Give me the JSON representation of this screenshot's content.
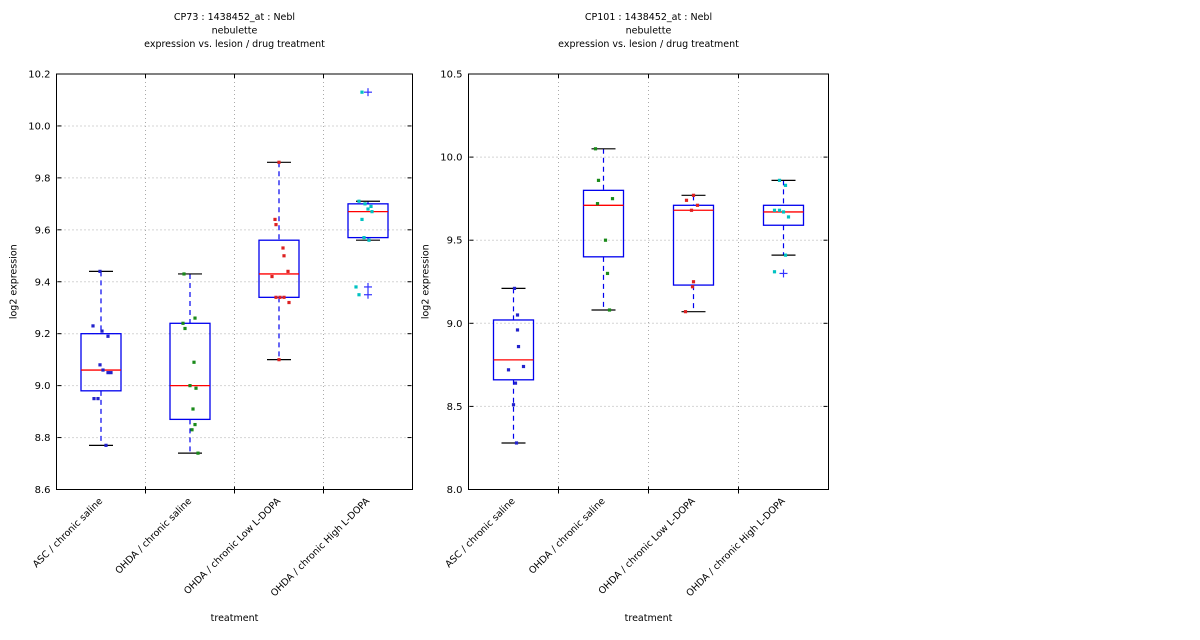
{
  "figure": {
    "background": "#ffffff"
  },
  "style": {
    "box_color": "#0000ee",
    "median_color": "#ff0000",
    "whisker_color": "#0000ee",
    "cap_color": "#000000",
    "outlier_color": "#3333ff",
    "grid_color": "#aaaaaa",
    "frame_color": "#000000",
    "text_color": "#000000"
  },
  "chart_data": [
    {
      "type": "boxplot",
      "title_lines": [
        "CP73 : 1438452_at : Nebl",
        "nebulette",
        "expression vs. lesion / drug treatment"
      ],
      "xlabel": "treatment",
      "ylabel": "log2 expression",
      "ylim": [
        8.6,
        10.2
      ],
      "yticks": [
        8.6,
        8.8,
        9.0,
        9.2,
        9.4,
        9.6,
        9.8,
        10.0,
        10.2
      ],
      "ytick_labels": [
        "8.6",
        "8.8",
        "9.0",
        "9.2",
        "9.4",
        "9.6",
        "9.8",
        "10.0",
        "10.2"
      ],
      "grid": true,
      "legend": "none",
      "categories": [
        "ASC / chronic saline",
        "OHDA / chronic saline",
        "OHDA / chronic Low L-DOPA",
        "OHDA / chronic High L-DOPA"
      ],
      "boxes": [
        {
          "category": "ASC / chronic saline",
          "whisker_low": 8.77,
          "q1": 8.98,
          "median": 9.06,
          "q3": 9.2,
          "whisker_high": 9.44,
          "outliers": [],
          "point_color": "#2222cc",
          "points": [
            [
              -1,
              9.44
            ],
            [
              -8,
              9.23
            ],
            [
              1,
              9.21
            ],
            [
              7,
              9.19
            ],
            [
              -1,
              9.08
            ],
            [
              2,
              9.06
            ],
            [
              7,
              9.05
            ],
            [
              10,
              9.05
            ],
            [
              -7,
              8.95
            ],
            [
              -3,
              8.95
            ],
            [
              5,
              8.77
            ]
          ]
        },
        {
          "category": "OHDA / chronic saline",
          "whisker_low": 8.74,
          "q1": 8.87,
          "median": 9.0,
          "q3": 9.24,
          "whisker_high": 9.43,
          "outliers": [],
          "point_color": "#1a8a1a",
          "points": [
            [
              -6,
              9.43
            ],
            [
              5,
              9.26
            ],
            [
              -7,
              9.24
            ],
            [
              -5,
              9.22
            ],
            [
              4,
              9.09
            ],
            [
              0,
              9.0
            ],
            [
              6,
              8.99
            ],
            [
              3,
              8.91
            ],
            [
              5,
              8.85
            ],
            [
              2,
              8.83
            ],
            [
              8,
              8.74
            ]
          ]
        },
        {
          "category": "OHDA / chronic Low L-DOPA",
          "whisker_low": 9.1,
          "q1": 9.34,
          "median": 9.43,
          "q3": 9.56,
          "whisker_high": 9.86,
          "outliers": [],
          "point_color": "#dd2222",
          "points": [
            [
              0,
              9.86
            ],
            [
              -4,
              9.64
            ],
            [
              -3,
              9.62
            ],
            [
              4,
              9.53
            ],
            [
              5,
              9.5
            ],
            [
              9,
              9.44
            ],
            [
              -7,
              9.42
            ],
            [
              -3,
              9.34
            ],
            [
              1,
              9.34
            ],
            [
              5,
              9.34
            ],
            [
              10,
              9.32
            ],
            [
              0,
              9.1
            ]
          ]
        },
        {
          "category": "OHDA / chronic High L-DOPA",
          "whisker_low": 9.56,
          "q1": 9.57,
          "median": 9.67,
          "q3": 9.7,
          "whisker_high": 9.71,
          "outliers": [
            10.13,
            9.38,
            9.35
          ],
          "point_color": "#00c2c2",
          "points": [
            [
              -6,
              10.13
            ],
            [
              -9,
              9.71
            ],
            [
              -3,
              9.7
            ],
            [
              3,
              9.69
            ],
            [
              0,
              9.68
            ],
            [
              4,
              9.67
            ],
            [
              -6,
              9.64
            ],
            [
              -4,
              9.57
            ],
            [
              1,
              9.56
            ],
            [
              -12,
              9.38
            ],
            [
              -9,
              9.35
            ]
          ]
        }
      ]
    },
    {
      "type": "boxplot",
      "title_lines": [
        "CP101 : 1438452_at : Nebl",
        "nebulette",
        "expression vs. lesion / drug treatment"
      ],
      "xlabel": "treatment",
      "ylabel": "log2 expression",
      "ylim": [
        8.0,
        10.5
      ],
      "yticks": [
        8.0,
        8.5,
        9.0,
        9.5,
        10.0,
        10.5
      ],
      "ytick_labels": [
        "8.0",
        "8.5",
        "9.0",
        "9.5",
        "10.0",
        "10.5"
      ],
      "grid": true,
      "legend": "none",
      "categories": [
        "ASC / chronic saline",
        "OHDA / chronic saline",
        "OHDA / chronic Low L-DOPA",
        "OHDA / chronic High L-DOPA"
      ],
      "boxes": [
        {
          "category": "ASC / chronic saline",
          "whisker_low": 8.28,
          "q1": 8.66,
          "median": 8.78,
          "q3": 9.02,
          "whisker_high": 9.21,
          "outliers": [],
          "point_color": "#2222cc",
          "points": [
            [
              1,
              9.21
            ],
            [
              4,
              9.05
            ],
            [
              4,
              8.96
            ],
            [
              5,
              8.86
            ],
            [
              10,
              8.74
            ],
            [
              -5,
              8.72
            ],
            [
              2,
              8.64
            ],
            [
              0,
              8.51
            ],
            [
              3,
              8.28
            ]
          ]
        },
        {
          "category": "OHDA / chronic saline",
          "whisker_low": 9.08,
          "q1": 9.4,
          "median": 9.71,
          "q3": 9.8,
          "whisker_high": 10.05,
          "outliers": [],
          "point_color": "#1a8a1a",
          "points": [
            [
              -8,
              10.05
            ],
            [
              -5,
              9.86
            ],
            [
              9,
              9.75
            ],
            [
              -6,
              9.72
            ],
            [
              2,
              9.5
            ],
            [
              4,
              9.3
            ],
            [
              6,
              9.08
            ]
          ]
        },
        {
          "category": "OHDA / chronic Low L-DOPA",
          "whisker_low": 9.07,
          "q1": 9.23,
          "median": 9.68,
          "q3": 9.71,
          "whisker_high": 9.77,
          "outliers": [],
          "point_color": "#dd2222",
          "points": [
            [
              0,
              9.77
            ],
            [
              -7,
              9.74
            ],
            [
              4,
              9.71
            ],
            [
              -2,
              9.68
            ],
            [
              0,
              9.25
            ],
            [
              -1,
              9.22
            ],
            [
              -8,
              9.07
            ]
          ]
        },
        {
          "category": "OHDA / chronic High L-DOPA",
          "whisker_low": 9.41,
          "q1": 9.59,
          "median": 9.67,
          "q3": 9.71,
          "whisker_high": 9.86,
          "outliers": [
            9.3
          ],
          "point_color": "#00c2c2",
          "points": [
            [
              -4,
              9.86
            ],
            [
              2,
              9.83
            ],
            [
              -9,
              9.68
            ],
            [
              -4,
              9.68
            ],
            [
              0,
              9.67
            ],
            [
              5,
              9.64
            ],
            [
              2,
              9.41
            ],
            [
              -9,
              9.31
            ]
          ]
        }
      ]
    }
  ]
}
